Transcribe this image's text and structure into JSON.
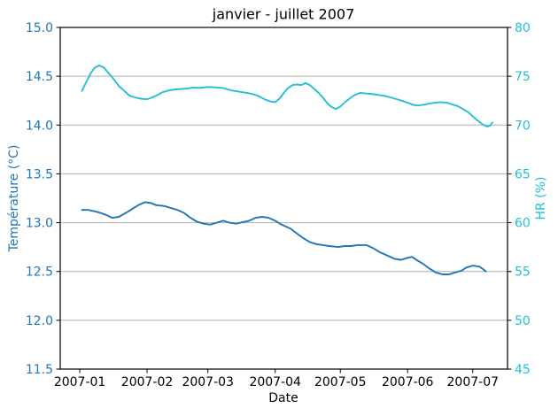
{
  "figure": {
    "title": "janvier - juillet 2007"
  },
  "chart_data": {
    "type": "line",
    "title": "janvier - juillet 2007",
    "xlabel": "Date",
    "grid": {
      "horizontal": true,
      "vertical": false,
      "color": "#b0b0b0"
    },
    "x_tick_labels": [
      "2007-01",
      "2007-02",
      "2007-03",
      "2007-04",
      "2007-05",
      "2007-06",
      "2007-07"
    ],
    "x_tick_days": [
      0,
      31,
      59,
      90,
      120,
      151,
      181
    ],
    "x_domain_days": [
      -9,
      197
    ],
    "left_axis": {
      "label": "Température (°C)",
      "color": "#1f77b4",
      "lim": [
        11.5,
        15.0
      ],
      "tick_values": [
        11.5,
        12.0,
        12.5,
        13.0,
        13.5,
        14.0,
        14.5,
        15.0
      ],
      "ticks": [
        "11.5",
        "12.0",
        "12.5",
        "13.0",
        "13.5",
        "14.0",
        "14.5",
        "15.0"
      ]
    },
    "right_axis": {
      "label": "HR (%)",
      "color": "#22c0d2",
      "lim": [
        45,
        80
      ],
      "tick_values": [
        45,
        50,
        55,
        60,
        65,
        70,
        75,
        80
      ],
      "ticks": [
        "45",
        "50",
        "55",
        "60",
        "65",
        "70",
        "75",
        "80"
      ]
    },
    "series": [
      {
        "name": "Température (°C)",
        "axis": "left",
        "color": "#1f77b4",
        "x_days": [
          1,
          4,
          8,
          12,
          15,
          18,
          22,
          27,
          30,
          33,
          35,
          39,
          42,
          45,
          48,
          51,
          54,
          57,
          60,
          63,
          66,
          69,
          72,
          74,
          78,
          81,
          84,
          87,
          90,
          93,
          97,
          100,
          103,
          106,
          109,
          112,
          115,
          119,
          122,
          125,
          128,
          132,
          135,
          138,
          142,
          145,
          148,
          151,
          153,
          155,
          158,
          161,
          164,
          167,
          170,
          173,
          176,
          178,
          181,
          184,
          186,
          187
        ],
        "y": [
          13.13,
          13.13,
          13.11,
          13.08,
          13.05,
          13.06,
          13.11,
          13.18,
          13.21,
          13.2,
          13.18,
          13.17,
          13.15,
          13.13,
          13.1,
          13.05,
          13.01,
          12.99,
          12.98,
          13.0,
          13.02,
          13.0,
          12.99,
          13.0,
          13.02,
          13.05,
          13.06,
          13.05,
          13.02,
          12.98,
          12.94,
          12.89,
          12.84,
          12.8,
          12.78,
          12.77,
          12.76,
          12.75,
          12.76,
          12.76,
          12.77,
          12.77,
          12.74,
          12.7,
          12.66,
          12.63,
          12.62,
          12.64,
          12.65,
          12.62,
          12.58,
          12.53,
          12.49,
          12.47,
          12.47,
          12.49,
          12.51,
          12.54,
          12.56,
          12.55,
          12.52,
          12.5
        ]
      },
      {
        "name": "HR (%)",
        "axis": "right",
        "color": "#22c0d2",
        "x_days": [
          1,
          3,
          5,
          7,
          9,
          11,
          13,
          16,
          18,
          21,
          23,
          26,
          28,
          31,
          33,
          36,
          38,
          41,
          44,
          47,
          50,
          52,
          55,
          58,
          60,
          63,
          66,
          68,
          71,
          74,
          77,
          80,
          83,
          85,
          88,
          90,
          92,
          94,
          96,
          98,
          100,
          102,
          104,
          106,
          108,
          110,
          112,
          114,
          116,
          118,
          120,
          123,
          126,
          129,
          131,
          134,
          137,
          140,
          143,
          146,
          149,
          152,
          154,
          156,
          159,
          162,
          164,
          166,
          169,
          171,
          174,
          176,
          179,
          181,
          183,
          185,
          187,
          188,
          189,
          190
        ],
        "y": [
          73.5,
          74.4,
          75.3,
          75.9,
          76.1,
          75.9,
          75.4,
          74.6,
          74.0,
          73.4,
          73.0,
          72.8,
          72.7,
          72.65,
          72.8,
          73.1,
          73.35,
          73.55,
          73.65,
          73.7,
          73.75,
          73.85,
          73.8,
          73.88,
          73.9,
          73.85,
          73.8,
          73.65,
          73.5,
          73.4,
          73.3,
          73.15,
          72.9,
          72.65,
          72.4,
          72.35,
          72.7,
          73.3,
          73.8,
          74.1,
          74.15,
          74.1,
          74.3,
          74.1,
          73.7,
          73.3,
          72.8,
          72.25,
          71.85,
          71.65,
          71.9,
          72.5,
          73.0,
          73.3,
          73.25,
          73.2,
          73.1,
          73.0,
          72.85,
          72.65,
          72.45,
          72.2,
          72.05,
          72.0,
          72.1,
          72.25,
          72.3,
          72.35,
          72.3,
          72.15,
          71.95,
          71.7,
          71.3,
          70.9,
          70.5,
          70.15,
          69.9,
          69.85,
          69.95,
          70.25
        ]
      }
    ]
  }
}
